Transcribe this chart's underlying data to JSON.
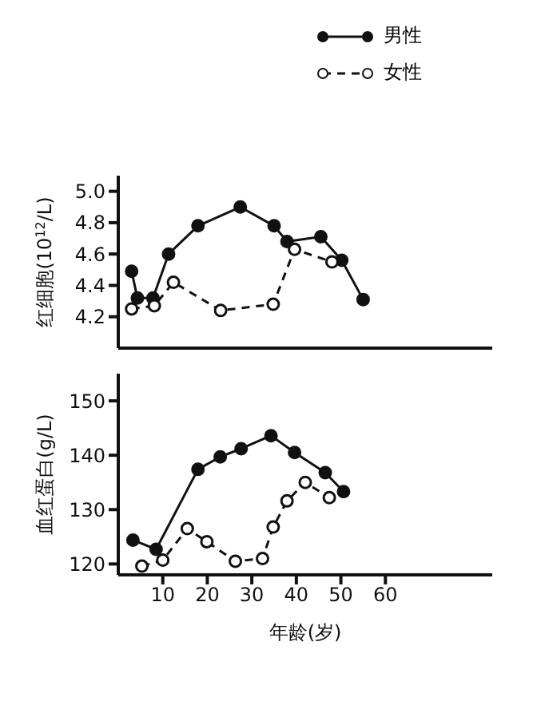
{
  "chart_data": [
    {
      "type": "line",
      "ylabel": "红细胞(10$^{12}$/L)",
      "legend": "top right",
      "marker": "circle",
      "tick_labels": "y",
      "xlim": [
        0,
        84
      ],
      "ylim": [
        4.0,
        5.1
      ],
      "yticks": [
        4.2,
        4.4,
        4.6,
        4.8,
        {
          "value": 5,
          "label": "5.0"
        }
      ],
      "series": [
        {
          "name": "男性",
          "color": "#111111",
          "line_style": "solid",
          "x": [
            3,
            4.3,
            7.8,
            11.3,
            17.9,
            27.4,
            35,
            37.9,
            45.5,
            50.2,
            55
          ],
          "values": [
            4.49,
            4.32,
            4.32,
            4.6,
            4.78,
            4.9,
            4.78,
            4.68,
            4.71,
            4.56,
            4.31
          ]
        },
        {
          "name": "女性",
          "color": "#111111",
          "line_style": "dashed",
          "x": [
            3,
            8.1,
            12.4,
            23,
            34.8,
            39.6,
            48
          ],
          "values": [
            4.25,
            4.27,
            4.42,
            4.24,
            4.28,
            4.63,
            4.55
          ]
        }
      ]
    },
    {
      "type": "line",
      "ylabel": "血红蛋白(g/L)",
      "xlabel": "年龄(岁)",
      "marker": "circle",
      "xlim": [
        0,
        84
      ],
      "xticks": [
        10,
        20,
        30,
        40,
        50,
        60
      ],
      "ylim": [
        118,
        155
      ],
      "yticks": [
        120,
        130,
        140,
        150
      ],
      "series": [
        {
          "color": "#111111",
          "line_style": "solid",
          "x": [
            3.3,
            8.5,
            17.9,
            22.9,
            27.6,
            34.3,
            39.6,
            46.5,
            50.6
          ],
          "values": [
            124.4,
            122.7,
            137.4,
            139.7,
            141.2,
            143.6,
            140.5,
            136.8,
            133.3
          ]
        },
        {
          "color": "#111111",
          "line_style": "dashed",
          "x": [
            5.3,
            10,
            15.5,
            19.9,
            26.3,
            32.4,
            34.8,
            37.9,
            42,
            47.4
          ],
          "values": [
            119.6,
            120.7,
            126.5,
            124.1,
            120.5,
            121,
            126.8,
            131.6,
            135,
            132.2
          ]
        }
      ]
    }
  ]
}
